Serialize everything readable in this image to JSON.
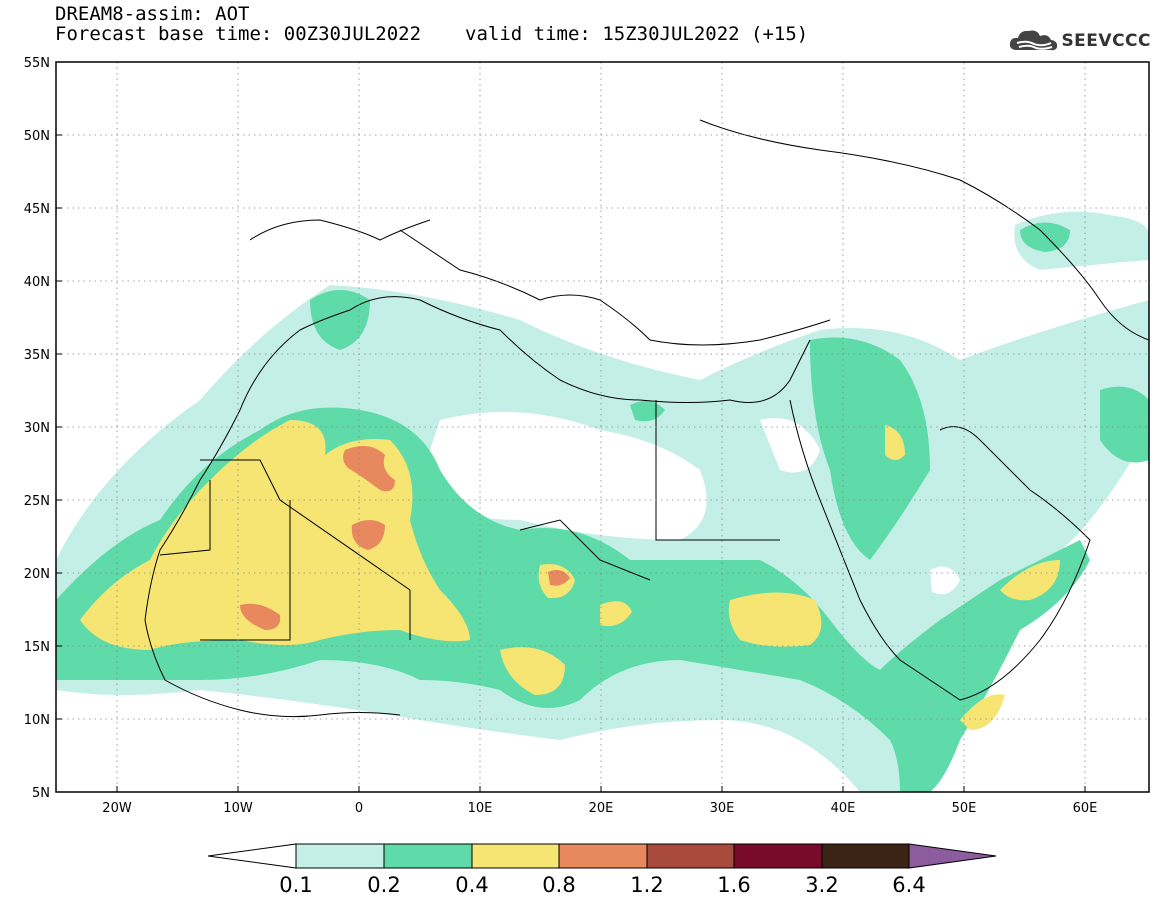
{
  "header": {
    "title": "DREAM8-assim: AOT",
    "base_time": "Forecast base time: 00Z30JUL2022",
    "valid_time": "valid time: 15Z30JUL2022 (+15)"
  },
  "logo": {
    "text": "SEEVCCC",
    "icon": "cloud-icon"
  },
  "map": {
    "lon_labels": [
      "20W",
      "10W",
      "0",
      "10E",
      "20E",
      "30E",
      "40E",
      "50E",
      "60E"
    ],
    "lat_labels": [
      "55N",
      "50N",
      "45N",
      "40N",
      "35N",
      "30N",
      "25N",
      "20N",
      "15N",
      "10N",
      "5N"
    ],
    "lon_range": [
      -25,
      65
    ],
    "lat_range": [
      5,
      55
    ],
    "grid": true
  },
  "colorbar": {
    "levels": [
      "0.1",
      "0.2",
      "0.4",
      "0.8",
      "1.2",
      "1.6",
      "3.2",
      "6.4"
    ],
    "colors": [
      "#ffffff",
      "#c4efe6",
      "#5edba8",
      "#f6e473",
      "#e8885f",
      "#a84a3c",
      "#780a2a",
      "#3c2414",
      "#8d5c9e"
    ]
  }
}
